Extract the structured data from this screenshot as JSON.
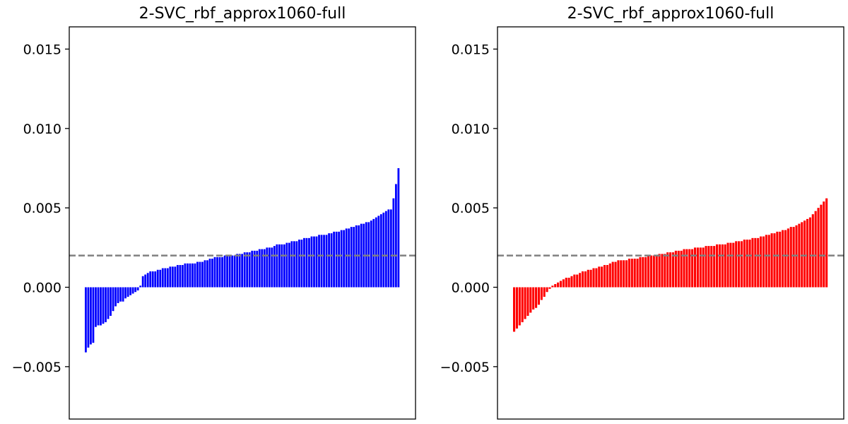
{
  "chart_data": [
    {
      "type": "bar",
      "title": "2-SVC_rbf_approx1060-full",
      "xlabel": "",
      "ylabel": "",
      "ylim": [
        -0.0083,
        0.0164
      ],
      "yticks": [
        -0.005,
        0.0,
        0.005,
        0.01,
        0.015
      ],
      "ytick_labels": [
        "−0.005",
        "0.000",
        "0.005",
        "0.010",
        "0.015"
      ],
      "grid": false,
      "bar_color": "#0000ff",
      "reference_line": {
        "y": 0.002,
        "color": "#808080",
        "style": "dashed"
      },
      "values": [
        -0.0041,
        -0.0038,
        -0.0036,
        -0.0035,
        -0.0025,
        -0.0024,
        -0.0024,
        -0.0023,
        -0.0022,
        -0.002,
        -0.0018,
        -0.0015,
        -0.0012,
        -0.001,
        -0.0009,
        -0.0009,
        -0.0007,
        -0.0006,
        -0.0005,
        -0.0004,
        -0.0003,
        -0.0002,
        0.0001,
        0.0007,
        0.0008,
        0.0009,
        0.001,
        0.001,
        0.001,
        0.0011,
        0.0011,
        0.0012,
        0.0012,
        0.0012,
        0.0013,
        0.0013,
        0.0013,
        0.0014,
        0.0014,
        0.0014,
        0.0015,
        0.0015,
        0.0015,
        0.0015,
        0.0015,
        0.0016,
        0.0016,
        0.0016,
        0.0017,
        0.0017,
        0.0018,
        0.0018,
        0.0019,
        0.0019,
        0.0019,
        0.0019,
        0.002,
        0.002,
        0.002,
        0.002,
        0.002,
        0.0021,
        0.0021,
        0.0021,
        0.0022,
        0.0022,
        0.0022,
        0.0023,
        0.0023,
        0.0023,
        0.0024,
        0.0024,
        0.0024,
        0.0025,
        0.0025,
        0.0025,
        0.0026,
        0.0027,
        0.0027,
        0.0027,
        0.0027,
        0.0028,
        0.0028,
        0.0029,
        0.0029,
        0.0029,
        0.003,
        0.003,
        0.0031,
        0.0031,
        0.0031,
        0.0032,
        0.0032,
        0.0032,
        0.0033,
        0.0033,
        0.0033,
        0.0033,
        0.0034,
        0.0034,
        0.0035,
        0.0035,
        0.0035,
        0.0036,
        0.0036,
        0.0037,
        0.0037,
        0.0038,
        0.0038,
        0.0039,
        0.0039,
        0.004,
        0.004,
        0.0041,
        0.0041,
        0.0042,
        0.0043,
        0.0044,
        0.0045,
        0.0046,
        0.0047,
        0.0048,
        0.0049,
        0.0049,
        0.0056,
        0.0065,
        0.0075
      ]
    },
    {
      "type": "bar",
      "title": "2-SVC_rbf_approx1060-full",
      "xlabel": "",
      "ylabel": "",
      "ylim": [
        -0.0083,
        0.0164
      ],
      "yticks": [
        -0.005,
        0.0,
        0.005,
        0.01,
        0.015
      ],
      "ytick_labels": [
        "−0.005",
        "0.000",
        "0.005",
        "0.010",
        "0.015"
      ],
      "grid": false,
      "bar_color": "#ff0000",
      "reference_line": {
        "y": 0.002,
        "color": "#808080",
        "style": "dashed"
      },
      "values": [
        -0.0028,
        -0.0026,
        -0.0024,
        -0.0022,
        -0.002,
        -0.0018,
        -0.0016,
        -0.0014,
        -0.0013,
        -0.0011,
        -0.0008,
        -0.0006,
        -0.0003,
        -0.0001,
        0.0001,
        0.0002,
        0.0003,
        0.0004,
        0.0005,
        0.0006,
        0.0006,
        0.0007,
        0.0008,
        0.0008,
        0.0009,
        0.001,
        0.001,
        0.0011,
        0.0011,
        0.0012,
        0.0012,
        0.0013,
        0.0013,
        0.0014,
        0.0014,
        0.0015,
        0.0016,
        0.0016,
        0.0017,
        0.0017,
        0.0017,
        0.0017,
        0.0018,
        0.0018,
        0.0018,
        0.0018,
        0.0019,
        0.0019,
        0.0019,
        0.002,
        0.002,
        0.002,
        0.002,
        0.0021,
        0.0021,
        0.0021,
        0.0022,
        0.0022,
        0.0022,
        0.0023,
        0.0023,
        0.0023,
        0.0024,
        0.0024,
        0.0024,
        0.0024,
        0.0025,
        0.0025,
        0.0025,
        0.0025,
        0.0026,
        0.0026,
        0.0026,
        0.0026,
        0.0027,
        0.0027,
        0.0027,
        0.0027,
        0.0028,
        0.0028,
        0.0028,
        0.0029,
        0.0029,
        0.0029,
        0.003,
        0.003,
        0.003,
        0.0031,
        0.0031,
        0.0031,
        0.0032,
        0.0032,
        0.0033,
        0.0033,
        0.0034,
        0.0034,
        0.0035,
        0.0035,
        0.0036,
        0.0036,
        0.0037,
        0.0038,
        0.0038,
        0.0039,
        0.004,
        0.0041,
        0.0042,
        0.0043,
        0.0044,
        0.0046,
        0.0048,
        0.005,
        0.0052,
        0.0054,
        0.0056
      ]
    }
  ]
}
